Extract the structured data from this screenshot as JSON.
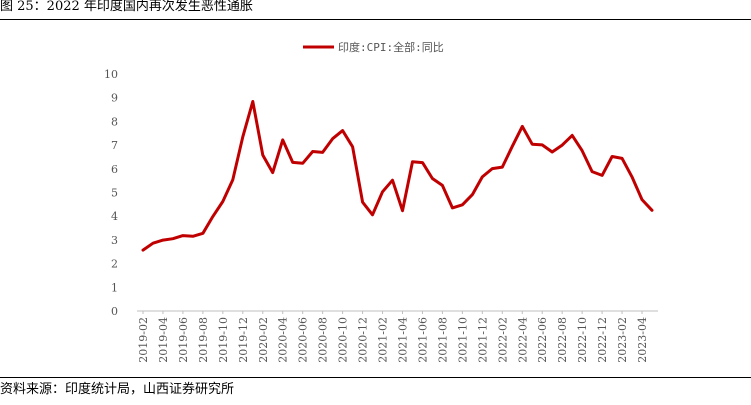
{
  "figure": {
    "title": "图 25：2022 年印度国内再次发生恶性通胀",
    "source": "资料来源：印度统计局，山西证券研究所"
  },
  "colors": {
    "series": "#C00000",
    "axis": "#BFBFBF",
    "text": "#595959"
  },
  "chart_data": {
    "type": "line",
    "title": "",
    "xlabel": "",
    "ylabel": "",
    "ylim": [
      0,
      10
    ],
    "yticks": [
      0,
      1,
      2,
      3,
      4,
      5,
      6,
      7,
      8,
      9,
      10
    ],
    "grid": false,
    "legend_position": "top-center",
    "x": [
      "2019-02",
      "2019-03",
      "2019-04",
      "2019-05",
      "2019-06",
      "2019-07",
      "2019-08",
      "2019-09",
      "2019-10",
      "2019-11",
      "2019-12",
      "2020-01",
      "2020-02",
      "2020-03",
      "2020-04",
      "2020-05",
      "2020-06",
      "2020-07",
      "2020-08",
      "2020-09",
      "2020-10",
      "2020-11",
      "2020-12",
      "2021-01",
      "2021-02",
      "2021-03",
      "2021-04",
      "2021-05",
      "2021-06",
      "2021-07",
      "2021-08",
      "2021-09",
      "2021-10",
      "2021-11",
      "2021-12",
      "2022-01",
      "2022-02",
      "2022-03",
      "2022-04",
      "2022-05",
      "2022-06",
      "2022-07",
      "2022-08",
      "2022-09",
      "2022-10",
      "2022-11",
      "2022-12",
      "2023-01",
      "2023-02",
      "2023-03",
      "2023-04",
      "2023-05"
    ],
    "xtick_labels": [
      "2019-02",
      "2019-04",
      "2019-06",
      "2019-08",
      "2019-10",
      "2019-12",
      "2020-02",
      "2020-04",
      "2020-06",
      "2020-08",
      "2020-10",
      "2020-12",
      "2021-02",
      "2021-04",
      "2021-06",
      "2021-08",
      "2021-10",
      "2021-12",
      "2022-02",
      "2022-04",
      "2022-06",
      "2022-08",
      "2022-10",
      "2022-12",
      "2023-02",
      "2023-04"
    ],
    "series": [
      {
        "name": "印度:CPI:全部:同比",
        "values": [
          2.57,
          2.86,
          2.99,
          3.05,
          3.18,
          3.15,
          3.28,
          3.99,
          4.62,
          5.54,
          7.35,
          8.84,
          6.58,
          5.84,
          7.22,
          6.27,
          6.23,
          6.73,
          6.69,
          7.27,
          7.61,
          6.93,
          4.59,
          4.06,
          5.03,
          5.52,
          4.23,
          6.3,
          6.26,
          5.59,
          5.3,
          4.35,
          4.48,
          4.91,
          5.66,
          6.01,
          6.07,
          6.95,
          7.79,
          7.04,
          7.01,
          6.71,
          7.0,
          7.41,
          6.77,
          5.88,
          5.72,
          6.52,
          6.44,
          5.66,
          4.7,
          4.25
        ]
      }
    ]
  }
}
